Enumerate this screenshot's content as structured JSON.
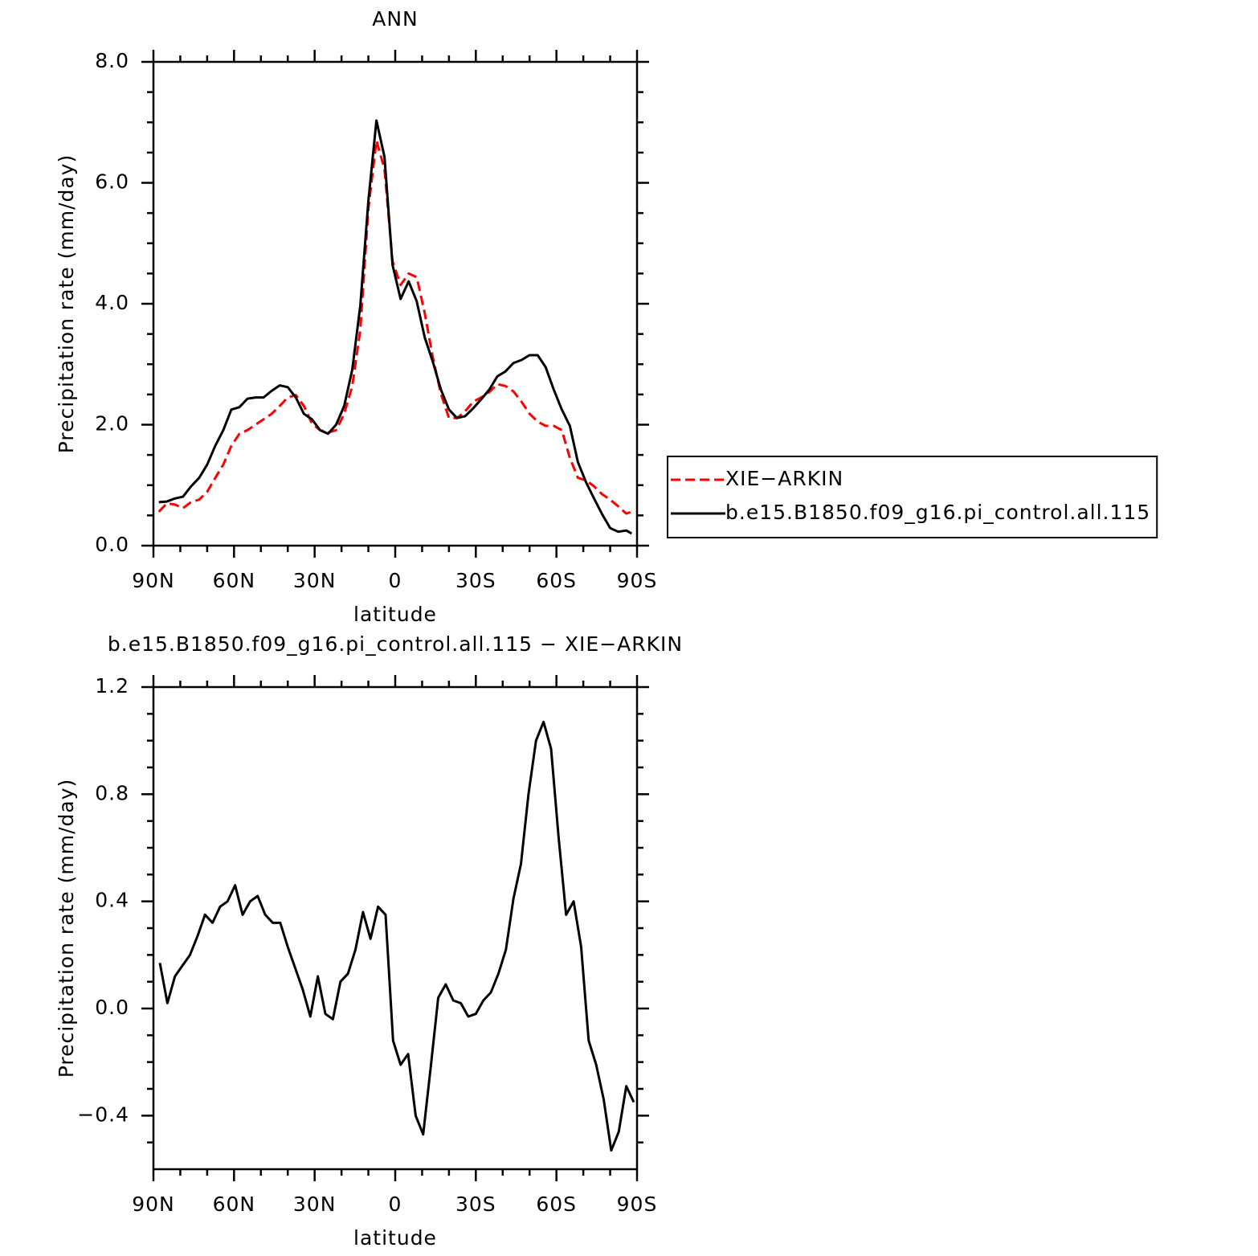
{
  "chart_data": [
    {
      "type": "line",
      "title": "ANN",
      "xlabel": "latitude",
      "ylabel": "Precipitation rate (mm/day)",
      "x": [
        88,
        85,
        82,
        79,
        76,
        73,
        70,
        67,
        64,
        61,
        58,
        55,
        52,
        49,
        46,
        43,
        40,
        37,
        34,
        31,
        28,
        25,
        22,
        19,
        16,
        13,
        10,
        7,
        4,
        1,
        -2,
        -5,
        -8,
        -11,
        -14,
        -17,
        -20,
        -23,
        -26,
        -29,
        -32,
        -35,
        -38,
        -41,
        -44,
        -47,
        -50,
        -53,
        -56,
        -59,
        -62,
        -65,
        -68,
        -71,
        -74,
        -77,
        -80,
        -83,
        -86,
        -88
      ],
      "series": [
        {
          "name": "XIE−ARKIN",
          "color": "#ff0000",
          "style": "dashed",
          "values": [
            0.56,
            0.7,
            0.68,
            0.62,
            0.72,
            0.76,
            0.89,
            1.12,
            1.34,
            1.65,
            1.85,
            1.91,
            2.0,
            2.09,
            2.18,
            2.31,
            2.45,
            2.49,
            2.31,
            2.02,
            1.91,
            1.87,
            1.91,
            2.18,
            2.64,
            3.57,
            5.57,
            6.7,
            6.23,
            4.7,
            4.31,
            4.5,
            4.44,
            3.84,
            3.11,
            2.51,
            2.11,
            2.11,
            2.22,
            2.38,
            2.45,
            2.54,
            2.67,
            2.64,
            2.55,
            2.38,
            2.18,
            2.05,
            1.98,
            1.98,
            1.91,
            1.45,
            1.12,
            1.08,
            0.98,
            0.85,
            0.76,
            0.65,
            0.53,
            0.56
          ]
        },
        {
          "name": "b.e15.B1850.f09_g16.pi_control.all.115",
          "color": "#000000",
          "style": "solid",
          "values": [
            0.72,
            0.73,
            0.78,
            0.81,
            0.98,
            1.12,
            1.34,
            1.65,
            1.91,
            2.25,
            2.29,
            2.43,
            2.45,
            2.45,
            2.56,
            2.65,
            2.62,
            2.45,
            2.18,
            2.09,
            1.91,
            1.85,
            2.0,
            2.31,
            2.91,
            3.97,
            5.7,
            7.03,
            6.43,
            4.64,
            4.08,
            4.37,
            4.04,
            3.44,
            3.04,
            2.58,
            2.25,
            2.11,
            2.14,
            2.27,
            2.42,
            2.58,
            2.8,
            2.88,
            3.02,
            3.07,
            3.15,
            3.15,
            2.95,
            2.58,
            2.25,
            1.98,
            1.38,
            1.05,
            0.78,
            0.52,
            0.29,
            0.23,
            0.25,
            0.2
          ]
        }
      ],
      "xlim": [
        90,
        -90
      ],
      "xticks": [
        {
          "value": 90,
          "label": "90N"
        },
        {
          "value": 60,
          "label": "60N"
        },
        {
          "value": 30,
          "label": "30N"
        },
        0,
        {
          "value": -30,
          "label": "30S"
        },
        {
          "value": -60,
          "label": "60S"
        },
        {
          "value": -90,
          "label": "90S"
        }
      ],
      "ylim": [
        0,
        8
      ],
      "yticks": [
        {
          "value": 0,
          "label": "0.0"
        },
        {
          "value": 2,
          "label": "2.0"
        },
        {
          "value": 4,
          "label": "4.0"
        },
        {
          "value": 6,
          "label": "6.0"
        },
        {
          "value": 8,
          "label": "8.0"
        }
      ],
      "legend": "right"
    },
    {
      "type": "line",
      "title": "b.e15.B1850.f09_g16.pi_control.all.115 − XIE−ARKIN",
      "xlabel": "latitude",
      "ylabel": "Precipitation rate (mm/day)",
      "x": [
        87.6,
        84.8,
        82.0,
        79.2,
        76.4,
        73.6,
        70.8,
        68.0,
        65.2,
        62.4,
        59.6,
        56.8,
        54.0,
        51.2,
        48.4,
        45.6,
        42.8,
        40.0,
        37.2,
        34.4,
        31.6,
        28.8,
        26.0,
        23.2,
        20.4,
        17.6,
        14.8,
        12.0,
        9.2,
        6.4,
        3.6,
        0.8,
        -2.0,
        -4.8,
        -7.6,
        -10.4,
        -13.2,
        -16.0,
        -18.8,
        -21.6,
        -24.4,
        -27.2,
        -30.0,
        -32.8,
        -35.6,
        -38.4,
        -41.2,
        -44.0,
        -46.8,
        -49.6,
        -52.4,
        -55.2,
        -58.0,
        -60.8,
        -63.6,
        -66.4,
        -69.2,
        -72.0,
        -74.8,
        -77.6,
        -80.4,
        -83.2,
        -86.0,
        -88.8
      ],
      "series": [
        {
          "color": "#000000",
          "style": "solid",
          "values": [
            0.17,
            0.02,
            0.12,
            0.16,
            0.2,
            0.27,
            0.35,
            0.32,
            0.38,
            0.4,
            0.46,
            0.35,
            0.4,
            0.42,
            0.35,
            0.32,
            0.32,
            0.23,
            0.15,
            0.07,
            -0.03,
            0.12,
            -0.02,
            -0.04,
            0.1,
            0.13,
            0.22,
            0.36,
            0.26,
            0.38,
            0.35,
            -0.12,
            -0.21,
            -0.17,
            -0.4,
            -0.47,
            -0.22,
            0.04,
            0.09,
            0.03,
            0.02,
            -0.03,
            -0.02,
            0.03,
            0.06,
            0.13,
            0.22,
            0.41,
            0.54,
            0.8,
            1.0,
            1.07,
            0.97,
            0.64,
            0.35,
            0.4,
            0.23,
            -0.12,
            -0.21,
            -0.34,
            -0.53,
            -0.46,
            -0.29,
            -0.35
          ]
        }
      ],
      "xlim": [
        90,
        -90
      ],
      "xticks": [
        {
          "value": 90,
          "label": "90N"
        },
        {
          "value": 60,
          "label": "60N"
        },
        {
          "value": 30,
          "label": "30N"
        },
        0,
        {
          "value": -30,
          "label": "30S"
        },
        {
          "value": -60,
          "label": "60S"
        },
        {
          "value": -90,
          "label": "90S"
        }
      ],
      "ylim": [
        -0.6,
        1.2
      ],
      "yticks": [
        {
          "value": -0.4,
          "label": "−0.4"
        },
        {
          "value": 0,
          "label": "0.0"
        },
        {
          "value": 0.4,
          "label": "0.4"
        },
        {
          "value": 0.8,
          "label": "0.8"
        },
        {
          "value": 1.2,
          "label": "1.2"
        }
      ]
    }
  ]
}
